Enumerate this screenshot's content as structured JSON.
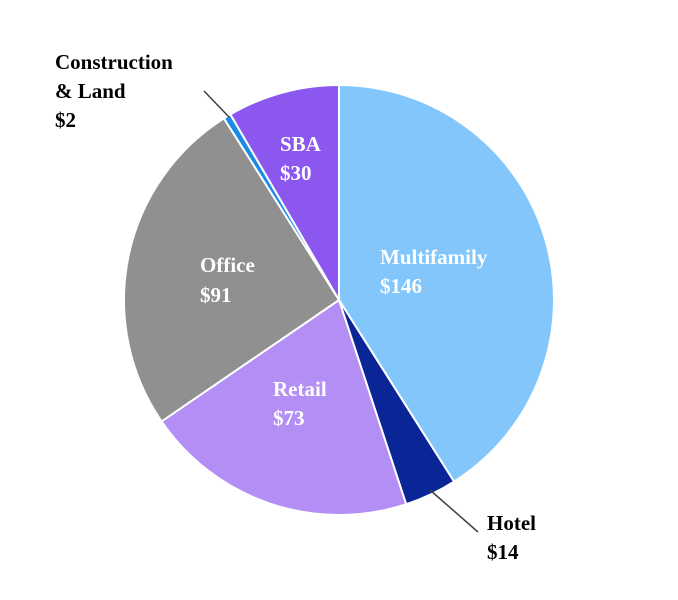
{
  "chart_data": {
    "type": "pie",
    "title": "",
    "unit_prefix": "$",
    "slices": [
      {
        "name": "Multifamily",
        "label": "$146",
        "value": 146,
        "color": "#82c6fc",
        "label_style": "inside"
      },
      {
        "name": "Hotel",
        "label": "$14",
        "value": 14,
        "color": "#0a2596",
        "label_style": "outside"
      },
      {
        "name": "Retail",
        "label": "$73",
        "value": 73,
        "color": "#b38ef5",
        "label_style": "inside"
      },
      {
        "name": "Office",
        "label": "$91",
        "value": 91,
        "color": "#909090",
        "label_style": "inside"
      },
      {
        "name": "Construction & Land",
        "label": "$2",
        "value": 2,
        "color": "#1a8be6",
        "label_style": "outside"
      },
      {
        "name": "SBA",
        "label": "$30",
        "value": 30,
        "color": "#8b57ef",
        "label_style": "inside"
      }
    ],
    "construction_label_lines": [
      "Construction",
      "& Land"
    ]
  }
}
